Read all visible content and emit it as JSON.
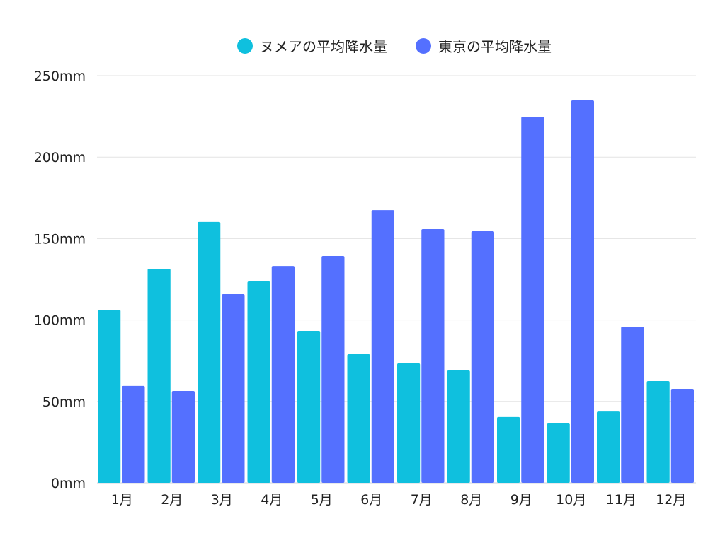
{
  "chart_data": {
    "type": "bar",
    "title": "",
    "xlabel": "",
    "ylabel": "",
    "ylim": [
      0,
      250
    ],
    "yticks": [
      "0mm",
      "50mm",
      "100mm",
      "150mm",
      "200mm",
      "250mm"
    ],
    "ytick_values": [
      0,
      50,
      100,
      150,
      200,
      250
    ],
    "grid": true,
    "legend_position": "top-center",
    "categories": [
      "1月",
      "2月",
      "3月",
      "4月",
      "5月",
      "6月",
      "7月",
      "8月",
      "9月",
      "10月",
      "11月",
      "12月"
    ],
    "series": [
      {
        "name": "ヌメアの平均降水量",
        "color": "#0fc0de",
        "values": [
          106.3,
          131.5,
          160.2,
          123.7,
          93.3,
          79.0,
          73.4,
          69.0,
          40.4,
          36.9,
          43.8,
          62.5
        ]
      },
      {
        "name": "東京の平均降水量",
        "color": "#5470ff",
        "values": [
          59.5,
          56.4,
          115.9,
          133.2,
          139.3,
          167.5,
          155.8,
          154.5,
          224.8,
          234.8,
          95.9,
          57.7
        ]
      }
    ]
  }
}
